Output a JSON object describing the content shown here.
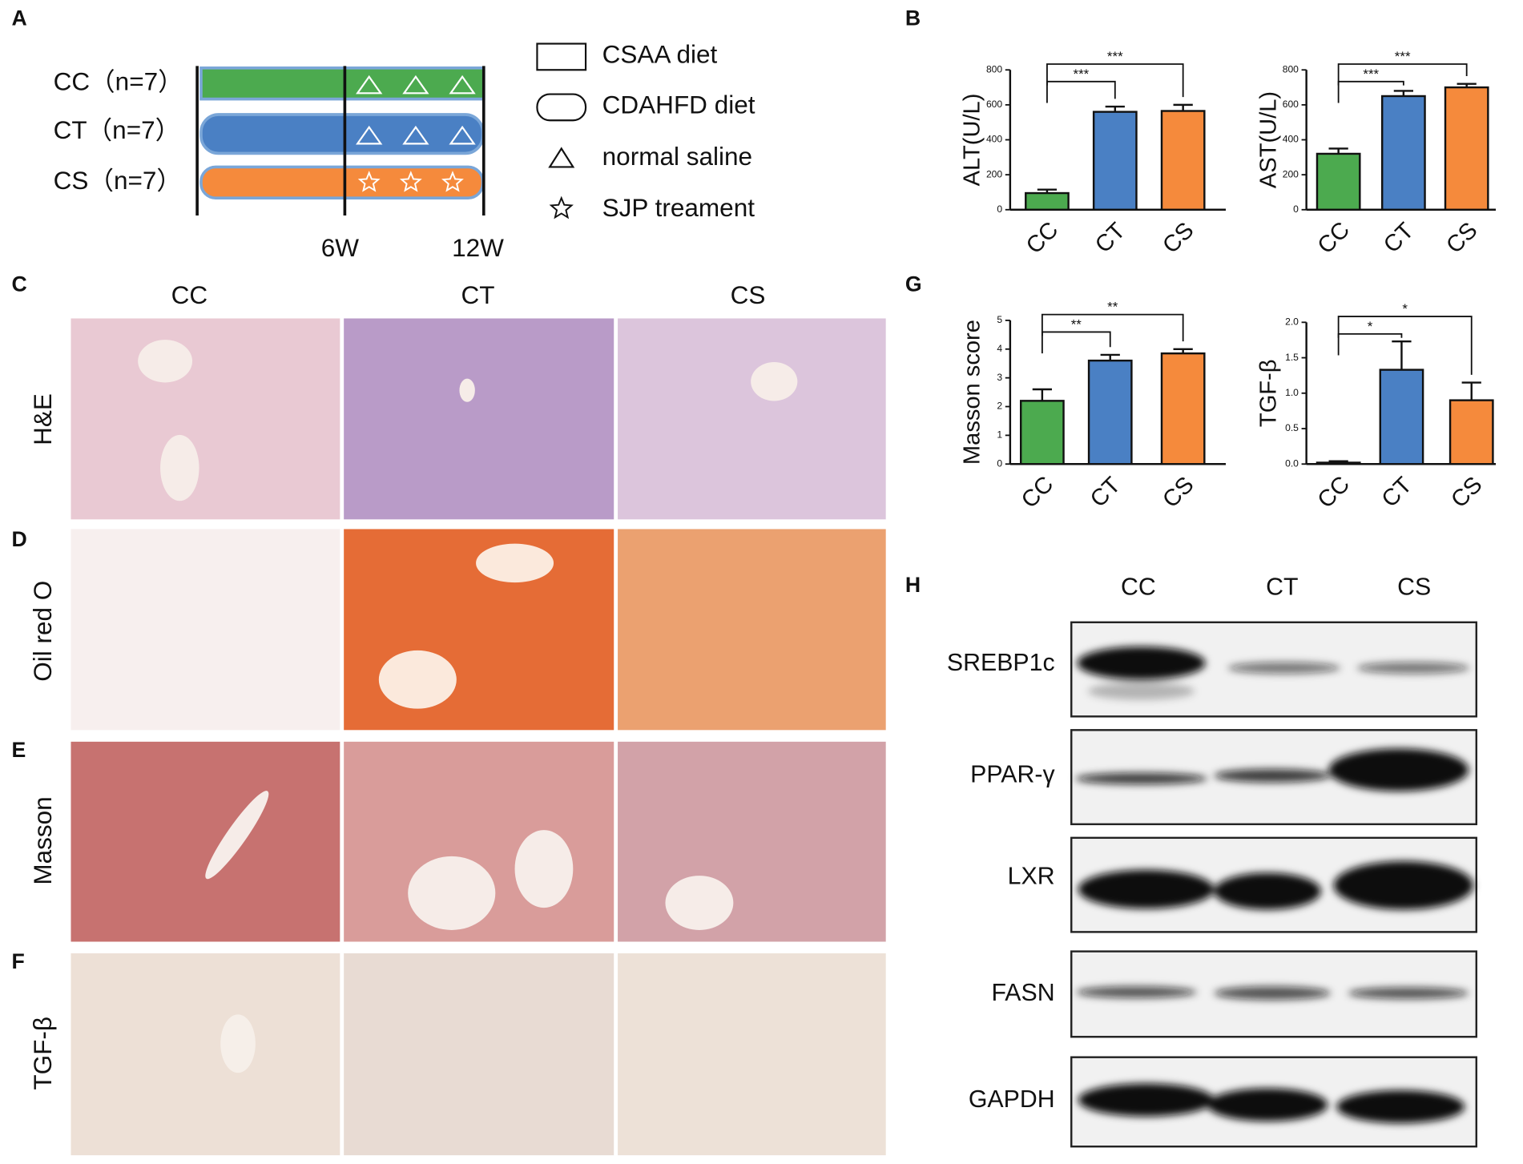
{
  "panel_labels": [
    "A",
    "B",
    "C",
    "D",
    "E",
    "F",
    "G",
    "H"
  ],
  "design": {
    "groups": [
      "CC（n=7）",
      "CT（n=7）",
      "CS（n=7）"
    ],
    "timepoints": [
      "6W",
      "12W"
    ],
    "legend": [
      "CSAA diet",
      "CDAHFD diet",
      "normal saline",
      "SJP treament"
    ]
  },
  "chart_data": [
    {
      "type": "bar",
      "ylabel": "ALT(U/L)",
      "categories": [
        "CC",
        "CT",
        "CS"
      ],
      "values": [
        95,
        560,
        565
      ],
      "errors": [
        20,
        30,
        35
      ],
      "colors": [
        "#4caa4f",
        "#4a80c4",
        "#f58a3c"
      ],
      "ylim": [
        0,
        800
      ],
      "yticks": [
        0,
        200,
        400,
        600,
        800
      ],
      "significance": [
        "***",
        "***"
      ]
    },
    {
      "type": "bar",
      "ylabel": "AST(U/L)",
      "categories": [
        "CC",
        "CT",
        "CS"
      ],
      "values": [
        320,
        650,
        700
      ],
      "errors": [
        30,
        30,
        20
      ],
      "colors": [
        "#4caa4f",
        "#4a80c4",
        "#f58a3c"
      ],
      "ylim": [
        0,
        800
      ],
      "yticks": [
        0,
        200,
        400,
        600,
        800
      ],
      "significance": [
        "***",
        "***"
      ]
    },
    {
      "type": "bar",
      "ylabel": "Masson score",
      "categories": [
        "CC",
        "CT",
        "CS"
      ],
      "values": [
        2.2,
        3.6,
        3.85
      ],
      "errors": [
        0.4,
        0.2,
        0.15
      ],
      "colors": [
        "#4caa4f",
        "#4a80c4",
        "#f58a3c"
      ],
      "ylim": [
        0,
        5
      ],
      "yticks": [
        0,
        1,
        2,
        3,
        4,
        5
      ],
      "significance": [
        "**",
        "**"
      ]
    },
    {
      "type": "bar",
      "ylabel": "TGF-β",
      "categories": [
        "CC",
        "CT",
        "CS"
      ],
      "values": [
        0.02,
        1.33,
        0.9
      ],
      "errors": [
        0.02,
        0.4,
        0.25
      ],
      "colors": [
        "#4caa4f",
        "#4a80c4",
        "#f58a3c"
      ],
      "ylim": [
        0,
        2
      ],
      "yticks": [
        {
          "value": 0,
          "label": "0.0"
        },
        0.5,
        {
          "value": 1,
          "label": "1.0"
        },
        1.5,
        {
          "value": 2,
          "label": "2.0"
        }
      ],
      "significance": [
        "*",
        "*"
      ]
    }
  ],
  "histology": {
    "columns": [
      "CC",
      "CT",
      "CS"
    ],
    "rows": [
      "H&E",
      "Oil red O",
      "Masson",
      "TGF-β"
    ]
  },
  "western": {
    "columns": [
      "CC",
      "CT",
      "CS"
    ],
    "proteins": [
      "SREBP1c",
      "PPAR-γ",
      "LXR",
      "FASN",
      "GAPDH"
    ]
  }
}
